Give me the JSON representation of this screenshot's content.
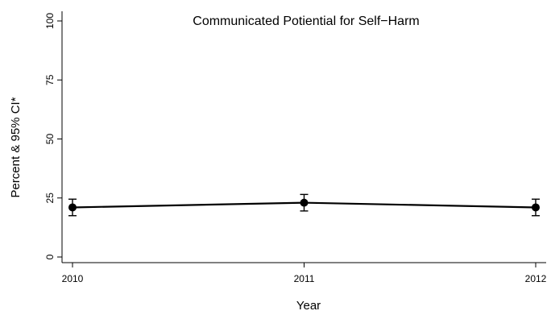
{
  "chart_data": {
    "type": "line",
    "title": "Communicated Potiential for Self−Harm",
    "xlabel": "Year",
    "ylabel": "Percent & 95% CI*",
    "ylim": [
      0,
      100
    ],
    "yticks": [
      0,
      25,
      50,
      75,
      100
    ],
    "categories": [
      "2010",
      "2011",
      "2012"
    ],
    "series": [
      {
        "values": [
          21,
          23,
          21
        ],
        "ci_lower": [
          17.5,
          19.5,
          17.5
        ],
        "ci_upper": [
          24.5,
          26.5,
          24.5
        ]
      }
    ],
    "grid": false,
    "legend": "none"
  }
}
